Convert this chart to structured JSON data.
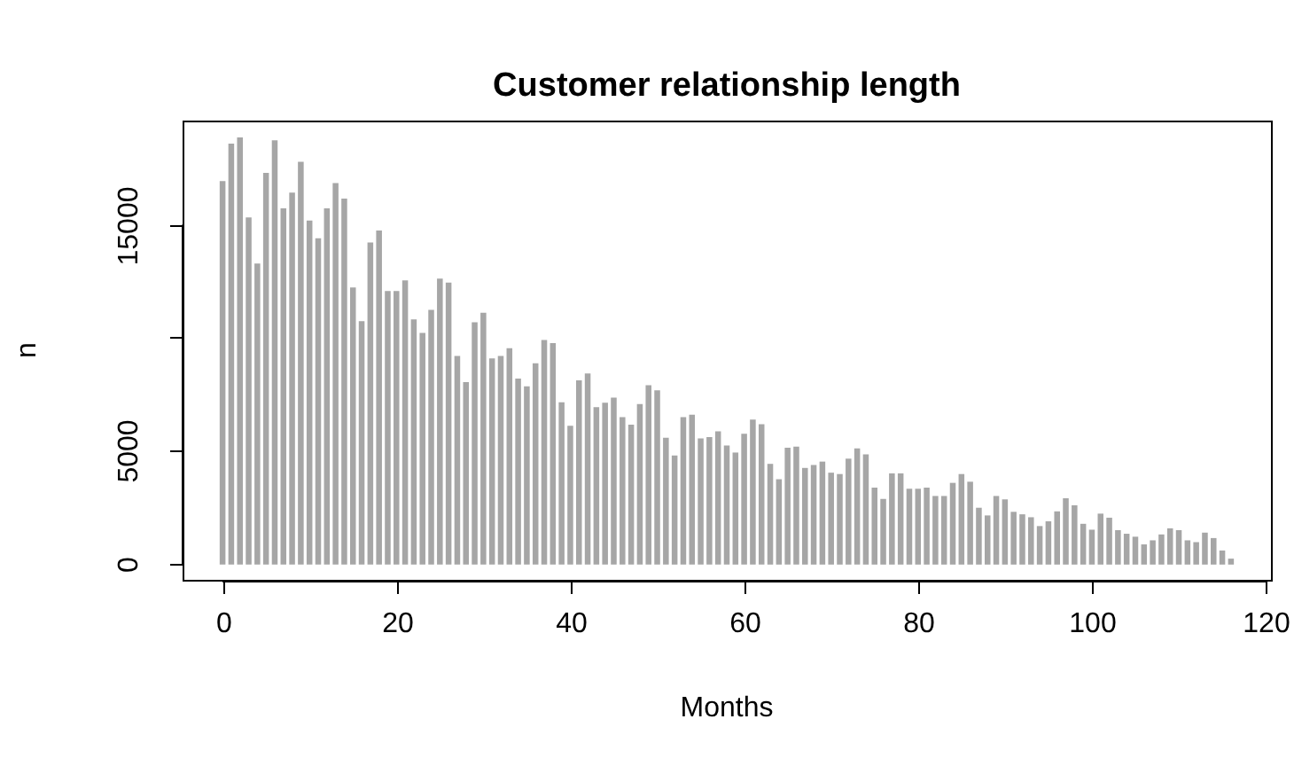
{
  "chart_data": {
    "type": "bar",
    "title": "Customer relationship length",
    "xlabel": "Months",
    "ylabel": "n",
    "color": "#a6a6a6",
    "x": [
      0,
      1,
      2,
      3,
      4,
      5,
      6,
      7,
      8,
      9,
      10,
      11,
      12,
      13,
      14,
      15,
      16,
      17,
      18,
      19,
      20,
      21,
      22,
      23,
      24,
      25,
      26,
      27,
      28,
      29,
      30,
      31,
      32,
      33,
      34,
      35,
      36,
      37,
      38,
      39,
      40,
      41,
      42,
      43,
      44,
      45,
      46,
      47,
      48,
      49,
      50,
      51,
      52,
      53,
      54,
      55,
      56,
      57,
      58,
      59,
      60,
      61,
      62,
      63,
      64,
      65,
      66,
      67,
      68,
      69,
      70,
      71,
      72,
      73,
      74,
      75,
      76,
      77,
      78,
      79,
      80,
      81,
      82,
      83,
      84,
      85,
      86,
      87,
      88,
      89,
      90,
      91,
      92,
      93,
      94,
      95,
      96,
      97,
      98,
      99,
      100,
      101,
      102,
      103,
      104,
      105,
      106,
      107,
      108,
      109,
      110,
      111,
      112,
      113,
      114,
      115,
      116
    ],
    "values": [
      16900,
      18560,
      18830,
      15290,
      13250,
      17260,
      18700,
      15690,
      16390,
      17750,
      15160,
      14370,
      15690,
      16810,
      16130,
      12200,
      10710,
      14190,
      14710,
      12040,
      12040,
      12510,
      10790,
      10190,
      11210,
      12590,
      12410,
      9170,
      8010,
      10660,
      11080,
      9060,
      9170,
      9510,
      8170,
      7830,
      8850,
      9870,
      9740,
      7120,
      6080,
      8090,
      8400,
      6910,
      7100,
      7330,
      6470,
      6130,
      7040,
      7880,
      7650,
      5550,
      4770,
      6470,
      6570,
      5520,
      5580,
      5840,
      5210,
      4900,
      5730,
      6360,
      6150,
      4400,
      3720,
      5110,
      5160,
      4220,
      4350,
      4500,
      4010,
      3950,
      4630,
      5080,
      4820,
      3350,
      2850,
      3980,
      3980,
      3300,
      3300,
      3350,
      2980,
      2980,
      3560,
      3950,
      3610,
      2460,
      2120,
      2980,
      2830,
      2280,
      2170,
      2040,
      1650,
      1860,
      2300,
      2880,
      2570,
      1750,
      1490,
      2200,
      2020,
      1470,
      1310,
      1180,
      840,
      1020,
      1280,
      1550,
      1470,
      1020,
      940,
      1360,
      1120,
      570,
      210
    ],
    "xlim": [
      -4.6,
      120.6
    ],
    "xticks": [
      0,
      20,
      40,
      60,
      80,
      100,
      120
    ],
    "ylim": [
      -700,
      19600
    ],
    "yticks": [
      0,
      5000,
      {
        "value": 10000,
        "label": null
      },
      15000
    ],
    "grid": false,
    "legend": false
  }
}
